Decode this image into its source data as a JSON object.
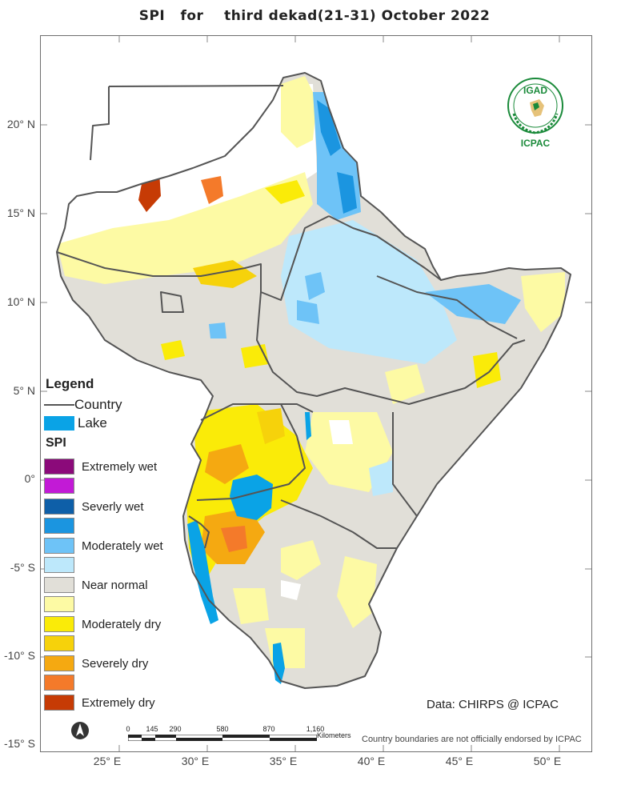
{
  "title": "SPI   for    third dekad(21-31) October 2022",
  "lat_labels": [
    "20° N",
    "15° N",
    "10° N",
    "5° N",
    "0°",
    "-5° S",
    "-10° S",
    "-15° S"
  ],
  "lon_labels": [
    "25° E",
    "30° E",
    "35° E",
    "40° E",
    "45° E",
    "50° E"
  ],
  "legend": {
    "heading": "Legend",
    "country_label": "Country",
    "lake_label": "Lake",
    "spi_heading": "SPI",
    "classes": [
      {
        "label": "Extremely wet",
        "color": "#8b0a7a"
      },
      {
        "label": "",
        "color": "#c21ad6"
      },
      {
        "label": "Severly wet",
        "color": "#0e5fa8"
      },
      {
        "label": "",
        "color": "#1b95e0"
      },
      {
        "label": "Moderately wet",
        "color": "#6ec3f7"
      },
      {
        "label": "",
        "color": "#bde8fb"
      },
      {
        "label": "Near normal",
        "color": "#e1dfd8"
      },
      {
        "label": "",
        "color": "#fdfaa4"
      },
      {
        "label": "Moderately dry",
        "color": "#faeb08"
      },
      {
        "label": "",
        "color": "#f6d20b"
      },
      {
        "label": "Severely dry",
        "color": "#f5a911"
      },
      {
        "label": "",
        "color": "#f47a2a"
      },
      {
        "label": "Extremely dry",
        "color": "#c63b05"
      }
    ],
    "country_line_color": "#555555",
    "lake_color": "#0aa3e6"
  },
  "credit": "Data: CHIRPS @ ICPAC",
  "disclaimer": "Country boundaries are not officially endorsed by ICPAC",
  "scale_bar": {
    "ticks": [
      "0",
      "145",
      "290",
      "580",
      "870",
      "1,160"
    ],
    "unit": "Kilometers"
  },
  "logo": {
    "top_text": "IGAD",
    "bottom_text": "ICPAC",
    "color": "#1a8a3a"
  }
}
